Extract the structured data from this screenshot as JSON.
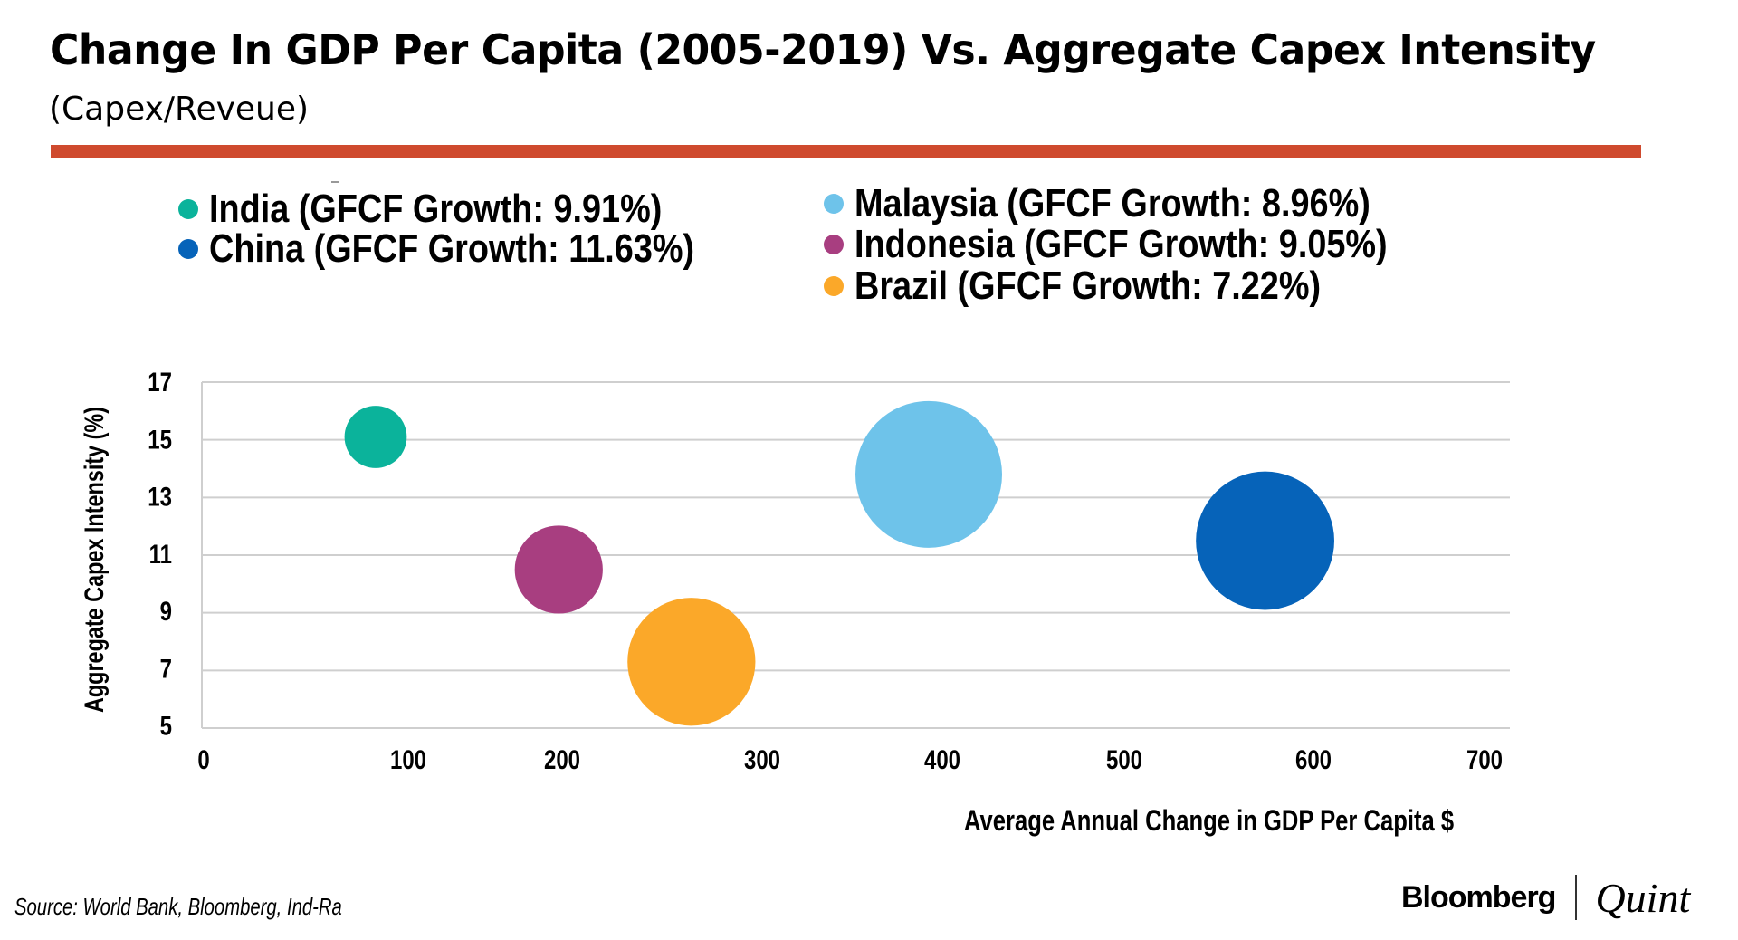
{
  "header": {
    "title": "Change In GDP Per Capita (2005-2019) Vs. Aggregate Capex Intensity",
    "subtitle": "(Capex/Reveue)",
    "rule_color": "#cf4a2e"
  },
  "legend": {
    "left": [
      {
        "label": "India (GFCF Growth: 9.91%)",
        "color": "#0bb39b"
      },
      {
        "label": "China (GFCF Growth: 11.63%)",
        "color": "#0663b9"
      }
    ],
    "right": [
      {
        "label": "Malaysia (GFCF Growth: 8.96%)",
        "color": "#6ec3ea"
      },
      {
        "label": "Indonesia (GFCF Growth: 9.05%)",
        "color": "#a83e80"
      },
      {
        "label": "Brazil (GFCF Growth: 7.22%)",
        "color": "#fba829"
      }
    ]
  },
  "chart_data": {
    "type": "scatter",
    "subtype": "bubble",
    "title": "Change In GDP Per Capita (2005-2019) Vs. Aggregate Capex Intensity",
    "subtitle": "(Capex/Reveue)",
    "xlabel": "Average Annual Change in GDP Per Capita $",
    "ylabel": "Aggregate Capex Intensity (%)",
    "xlim": [
      0,
      700
    ],
    "ylim": [
      5,
      17
    ],
    "x_ticks": [
      "0",
      "100",
      "200",
      "300",
      "400",
      "500",
      "600",
      "700"
    ],
    "y_ticks": [
      "17",
      "15",
      "13",
      "11",
      "9",
      "7",
      "5"
    ],
    "grid": "horizontal",
    "legend_position": "top",
    "series": [
      {
        "name": "India",
        "gfcf_growth": "9.91%",
        "x": 93,
        "y": 15.1,
        "relative_bubble_size": 0.18,
        "color": "#0bb39b"
      },
      {
        "name": "China",
        "gfcf_growth": "11.63%",
        "x": 569,
        "y": 11.5,
        "relative_bubble_size": 0.89,
        "color": "#0663b9"
      },
      {
        "name": "Malaysia",
        "gfcf_growth": "8.96%",
        "x": 389,
        "y": 13.8,
        "relative_bubble_size": 1.0,
        "color": "#6ec3ea"
      },
      {
        "name": "Indonesia",
        "gfcf_growth": "9.05%",
        "x": 191,
        "y": 10.5,
        "relative_bubble_size": 0.36,
        "color": "#a83e80"
      },
      {
        "name": "Brazil",
        "gfcf_growth": "7.22%",
        "x": 262,
        "y": 7.3,
        "relative_bubble_size": 0.76,
        "color": "#fba829"
      }
    ]
  },
  "footer": {
    "source": "Source: World Bank, Bloomberg, Ind-Ra",
    "logo_left": "Bloomberg",
    "logo_right": "Quint"
  }
}
